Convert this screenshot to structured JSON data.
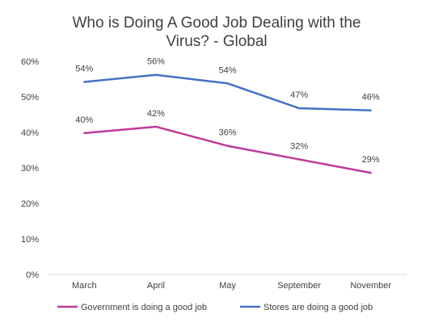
{
  "chart_data": {
    "type": "line",
    "title_lines": [
      "Who is Doing A Good Job Dealing with  the",
      "Virus? - Global"
    ],
    "categories": [
      "March",
      "April",
      "May",
      "September",
      "November"
    ],
    "ylim": [
      0,
      60
    ],
    "yticks": [
      0,
      10,
      20,
      30,
      40,
      50,
      60
    ],
    "ytick_labels": [
      "0%",
      "10%",
      "20%",
      "30%",
      "40%",
      "50%",
      "60%"
    ],
    "grid": false,
    "legend_position": "bottom",
    "series": [
      {
        "name": "Government is doing a good job",
        "color": "#C0399B",
        "values": [
          39.8,
          41.6,
          36.2,
          32.4,
          28.6
        ],
        "labels": [
          "40%",
          "42%",
          "36%",
          "32%",
          "29%"
        ]
      },
      {
        "name": "Stores are doing a good job",
        "color": "#4472C4",
        "values": [
          54.2,
          56.2,
          53.8,
          46.8,
          46.2
        ],
        "labels": [
          "54%",
          "56%",
          "54%",
          "47%",
          "46%"
        ]
      }
    ]
  }
}
